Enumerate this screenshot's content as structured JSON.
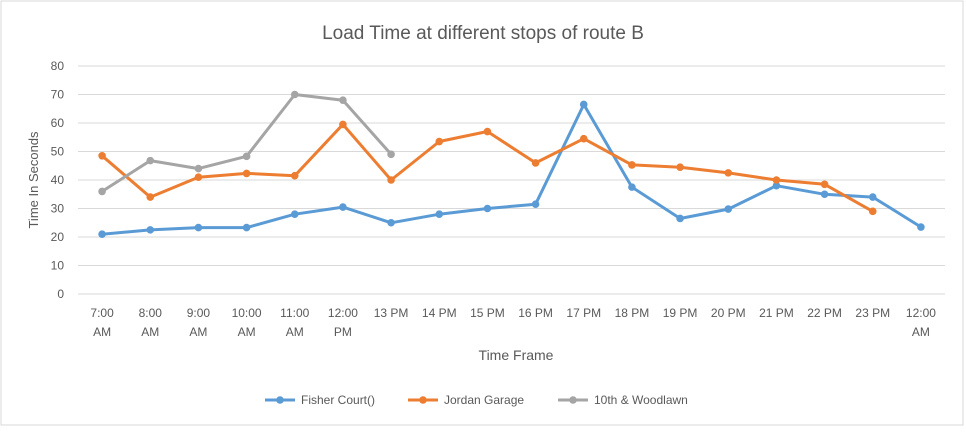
{
  "chart_data": {
    "type": "line",
    "title": "Load Time at different stops of route B",
    "xlabel": "Time Frame",
    "ylabel": "Time In Seconds",
    "ylim": [
      0,
      80
    ],
    "yticks": [
      0,
      10,
      20,
      30,
      40,
      50,
      60,
      70,
      80
    ],
    "grid": true,
    "legend": "bottom",
    "categories": [
      [
        "7:00",
        "AM"
      ],
      [
        "8:00",
        "AM"
      ],
      [
        "9:00",
        "AM"
      ],
      [
        "10:00",
        "AM"
      ],
      [
        "11:00",
        "AM"
      ],
      [
        "12:00",
        "PM"
      ],
      [
        "13 PM"
      ],
      [
        "14 PM"
      ],
      [
        "15 PM"
      ],
      [
        "16 PM"
      ],
      [
        "17 PM"
      ],
      [
        "18 PM"
      ],
      [
        "19 PM"
      ],
      [
        "20 PM"
      ],
      [
        "21 PM"
      ],
      [
        "22 PM"
      ],
      [
        "23 PM"
      ],
      [
        "12:00",
        "AM"
      ]
    ],
    "series": [
      {
        "name": "Fisher Court()",
        "color": "#5B9BD5",
        "values": [
          21,
          22.5,
          23.3,
          23.3,
          28,
          30.5,
          25,
          28,
          30,
          31.5,
          66.5,
          37.5,
          26.5,
          29.8,
          38,
          35,
          34,
          23.5
        ]
      },
      {
        "name": "Jordan Garage",
        "color": "#ED7D31",
        "values": [
          48.5,
          34,
          41,
          42.3,
          41.5,
          59.5,
          40,
          53.5,
          57,
          46,
          54.5,
          45.3,
          44.5,
          42.5,
          40,
          38.5,
          29,
          null
        ]
      },
      {
        "name": "10th & Woodlawn",
        "color": "#A5A5A5",
        "values": [
          36,
          46.8,
          44,
          48.3,
          70,
          68,
          49,
          null,
          null,
          null,
          null,
          null,
          null,
          null,
          null,
          null,
          null,
          null
        ]
      }
    ]
  }
}
